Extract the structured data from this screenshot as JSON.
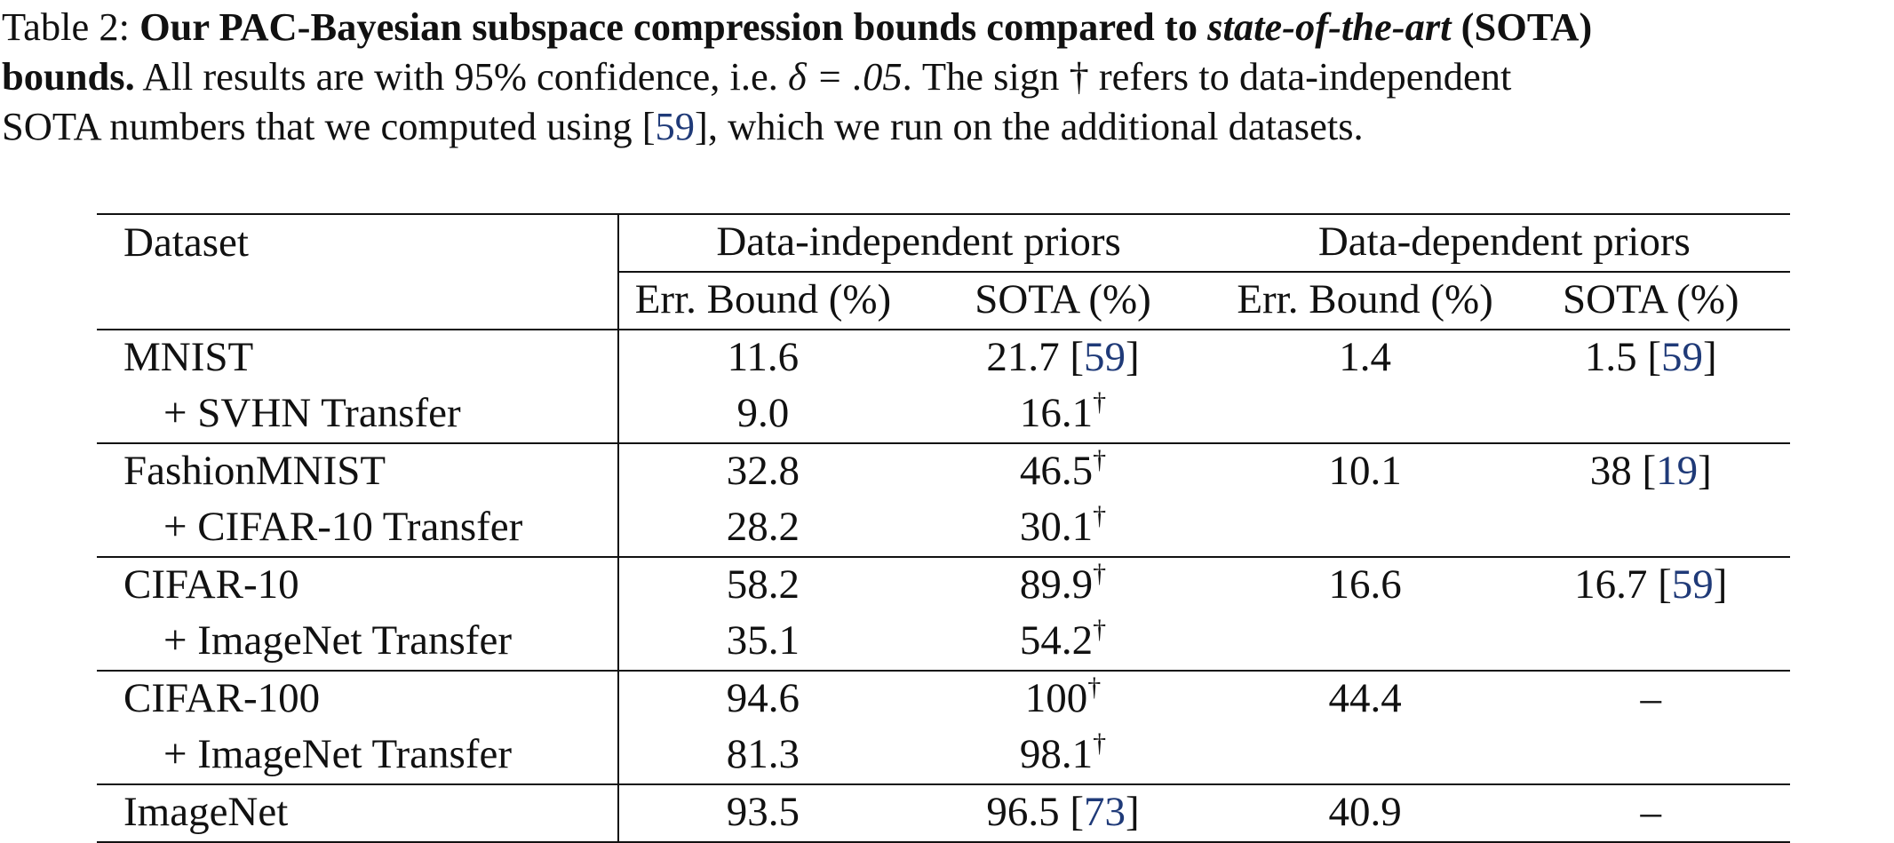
{
  "caption": {
    "label": "Table 2:",
    "bold_title_1": "Our PAC-Bayesian subspace compression bounds compared to",
    "bold_italic": "state-of-the-art",
    "bold_title_2": "(SOTA) bounds.",
    "text_1": "All results are with 95% confidence, i.e.",
    "delta": "δ = .05",
    "text_2": ". The sign † refers to data-independent",
    "text_3": "SOTA numbers that we computed using [",
    "cite": "59",
    "text_4": "], which we run on the additional datasets."
  },
  "table": {
    "col_dataset": "Dataset",
    "group_1": "Data-independent priors",
    "group_2": "Data-dependent priors",
    "sub_err": "Err. Bound (%)",
    "sub_sota": "SOTA (%)",
    "dagger": "†",
    "rows": [
      {
        "name": "MNIST",
        "e1": "11.6",
        "s1": "21.7 [",
        "s1cite": "59",
        "e2": "1.4",
        "s2": "1.5 [",
        "s2cite": "59"
      },
      {
        "name": "+ SVHN Transfer",
        "e1": "9.0",
        "s1": "16.1"
      },
      {
        "name": "FashionMNIST",
        "e1": "32.8",
        "s1": "46.5",
        "e2": "10.1",
        "s2": "38 [",
        "s2cite": "19"
      },
      {
        "name": "+ CIFAR-10 Transfer",
        "e1": "28.2",
        "s1": "30.1"
      },
      {
        "name": "CIFAR-10",
        "e1": "58.2",
        "s1": "89.9",
        "e2": "16.6",
        "s2": "16.7 [",
        "s2cite": "59"
      },
      {
        "name": "+ ImageNet Transfer",
        "e1": "35.1",
        "s1": "54.2"
      },
      {
        "name": "CIFAR-100",
        "e1": "94.6",
        "s1": "100",
        "e2": "44.4",
        "s2": "–"
      },
      {
        "name": "+ ImageNet Transfer",
        "e1": "81.3",
        "s1": "98.1"
      },
      {
        "name": "ImageNet",
        "e1": "93.5",
        "s1": "96.5 [",
        "s1cite": "73",
        "e2": "40.9",
        "s2": "–"
      }
    ],
    "close_bracket": "]"
  }
}
